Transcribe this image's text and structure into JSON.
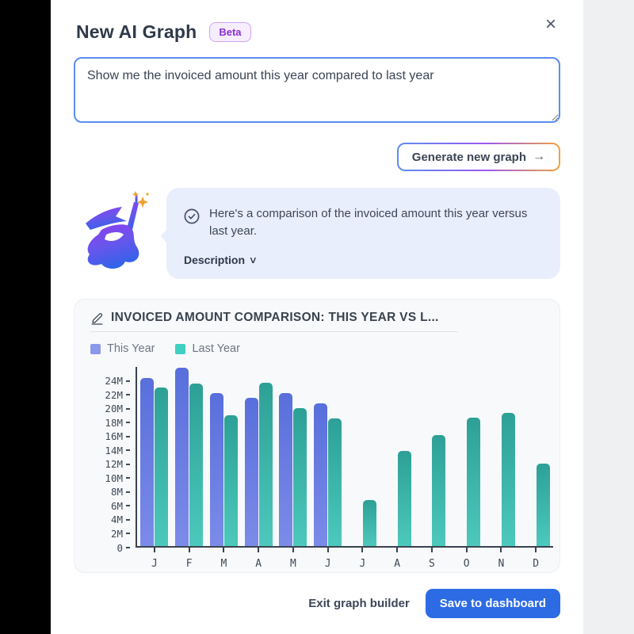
{
  "header": {
    "title": "New AI Graph",
    "badge": "Beta",
    "close_glyph": "×"
  },
  "prompt": {
    "value": "Show me the invoiced amount this year compared to last year"
  },
  "generate_button": {
    "label": "Generate new graph",
    "arrow": "→"
  },
  "assistant": {
    "message": "Here's a comparison of the invoiced amount this year versus last year.",
    "description_label": "Description",
    "chevron": "∨",
    "icons": [
      "wizard-icon",
      "check-circle-icon"
    ]
  },
  "chart": {
    "title": "INVOICED AMOUNT COMPARISON: THIS YEAR VS L...",
    "edit_icon": "pencil-icon",
    "legend": [
      {
        "label": "This Year",
        "color": "#8b97e8"
      },
      {
        "label": "Last Year",
        "color": "#3fd0c3"
      }
    ]
  },
  "chart_data": {
    "type": "bar",
    "title": "INVOICED AMOUNT COMPARISON: THIS YEAR VS L...",
    "categories": [
      "J",
      "F",
      "M",
      "A",
      "M",
      "J",
      "J",
      "A",
      "S",
      "O",
      "N",
      "D"
    ],
    "series": [
      {
        "name": "This Year",
        "color_top": "#586fdb",
        "color_bottom": "#7c8be8",
        "values": [
          24.2,
          25.7,
          22.0,
          21.3,
          22.0,
          20.5,
          null,
          null,
          null,
          null,
          null,
          null
        ]
      },
      {
        "name": "Last Year",
        "color_top": "#2da096",
        "color_bottom": "#4cc9bc",
        "values": [
          22.8,
          23.4,
          18.8,
          23.5,
          19.8,
          18.4,
          6.6,
          13.7,
          16.0,
          18.5,
          19.2,
          11.9
        ]
      }
    ],
    "unit": "M",
    "ylim": [
      0,
      26
    ],
    "ytick_step": 2,
    "ytick_labels": [
      "0",
      "2M",
      "4M",
      "6M",
      "8M",
      "10M",
      "12M",
      "14M",
      "16M",
      "18M",
      "20M",
      "22M",
      "24M"
    ],
    "legend_position": "top-left",
    "grid": false
  },
  "footer": {
    "exit_label": "Exit graph builder",
    "save_label": "Save to dashboard"
  },
  "colors": {
    "accent_blue": "#2d6be4",
    "input_border": "#5b8def",
    "badge_purple": "#8b2fd6",
    "bubble_bg": "#e8eefb",
    "card_bg": "#f8f9fb",
    "axis": "#39434f",
    "sparkle_orange": "#f0a02f"
  }
}
